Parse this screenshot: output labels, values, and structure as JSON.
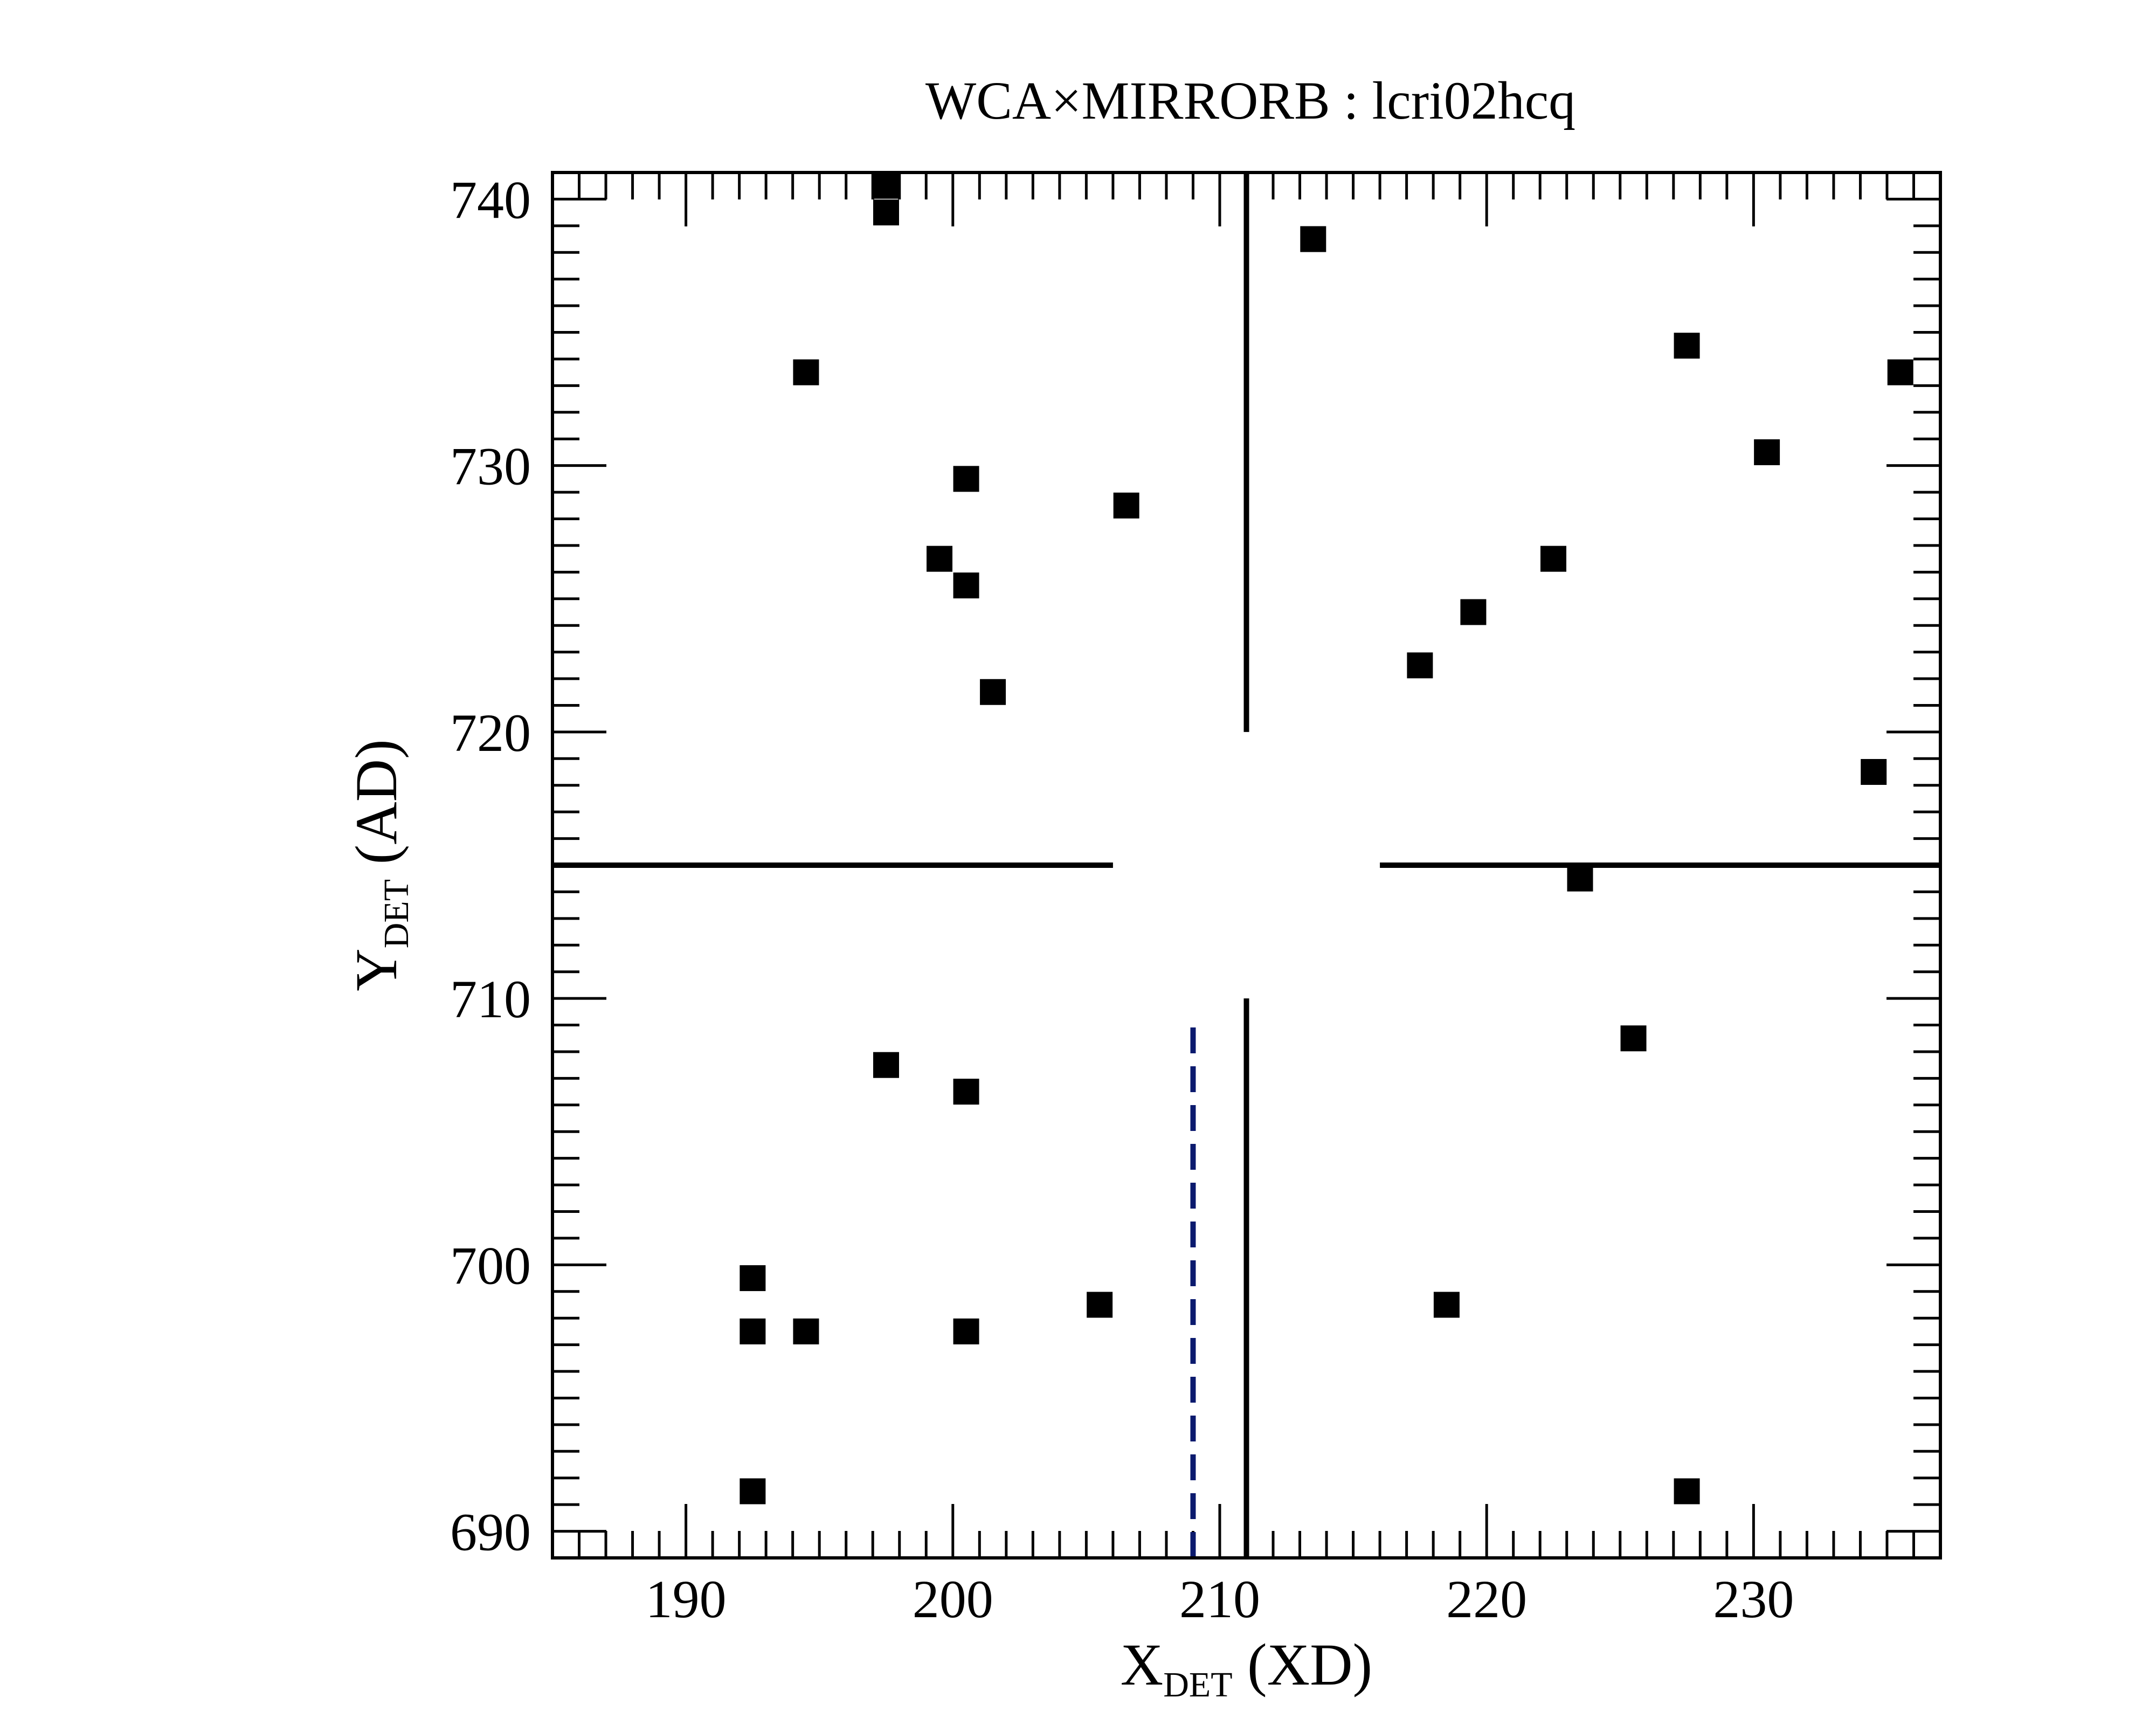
{
  "chart_data": {
    "type": "scatter",
    "title": "WCA×MIRRORB : lcri02hcq",
    "xlabel": {
      "main": "X",
      "sub": "DET",
      "suffix": " (XD)"
    },
    "ylabel": {
      "main": "Y",
      "sub": "DET",
      "suffix": " (AD)"
    },
    "xlim": [
      185,
      237
    ],
    "ylim": [
      689,
      741
    ],
    "x_major_ticks": [
      190,
      200,
      210,
      220,
      230
    ],
    "x_major_tick_labels": [
      "190",
      "200",
      "210",
      "220",
      "230"
    ],
    "x_minor_step": 1,
    "y_major_ticks": [
      690,
      700,
      710,
      720,
      730,
      740
    ],
    "y_major_tick_labels": [
      "690",
      "700",
      "710",
      "720",
      "730",
      "740"
    ],
    "y_minor_step": 1,
    "grid": false,
    "legend": "none",
    "marker": "square",
    "marker_color": "#000000",
    "points": [
      {
        "x": 197.5,
        "y": 740.5
      },
      {
        "x": 197.5,
        "y": 739.5
      },
      {
        "x": 213.5,
        "y": 738.5
      },
      {
        "x": 227.5,
        "y": 734.5
      },
      {
        "x": 194.5,
        "y": 733.5
      },
      {
        "x": 235.5,
        "y": 733.5
      },
      {
        "x": 230.5,
        "y": 730.5
      },
      {
        "x": 200.5,
        "y": 729.5
      },
      {
        "x": 206.5,
        "y": 728.5
      },
      {
        "x": 199.5,
        "y": 726.5
      },
      {
        "x": 222.5,
        "y": 726.5
      },
      {
        "x": 200.5,
        "y": 725.5
      },
      {
        "x": 219.5,
        "y": 724.5
      },
      {
        "x": 217.5,
        "y": 722.5
      },
      {
        "x": 201.5,
        "y": 721.5
      },
      {
        "x": 234.5,
        "y": 718.5
      },
      {
        "x": 223.5,
        "y": 714.5
      },
      {
        "x": 225.5,
        "y": 708.5
      },
      {
        "x": 197.5,
        "y": 707.5
      },
      {
        "x": 200.5,
        "y": 706.5
      },
      {
        "x": 192.5,
        "y": 699.5
      },
      {
        "x": 205.5,
        "y": 698.5
      },
      {
        "x": 218.5,
        "y": 698.5
      },
      {
        "x": 192.5,
        "y": 697.5
      },
      {
        "x": 194.5,
        "y": 697.5
      },
      {
        "x": 200.5,
        "y": 697.5
      },
      {
        "x": 192.5,
        "y": 691.5
      },
      {
        "x": 227.5,
        "y": 691.5
      }
    ],
    "crosshair": {
      "x": 211,
      "y": 715,
      "line_color": "#000000",
      "segments": [
        {
          "orientation": "vertical",
          "x": 211,
          "from": 720,
          "to": 741
        },
        {
          "orientation": "vertical",
          "x": 211,
          "from": 689,
          "to": 710
        },
        {
          "orientation": "horizontal",
          "y": 715,
          "from": 185,
          "to": 206
        },
        {
          "orientation": "horizontal",
          "y": 715,
          "from": 216,
          "to": 237
        }
      ]
    },
    "reference_line": {
      "orientation": "vertical",
      "style": "dashed",
      "color": "#0b1a6e",
      "x": 209,
      "from": 689,
      "to": 709
    }
  }
}
